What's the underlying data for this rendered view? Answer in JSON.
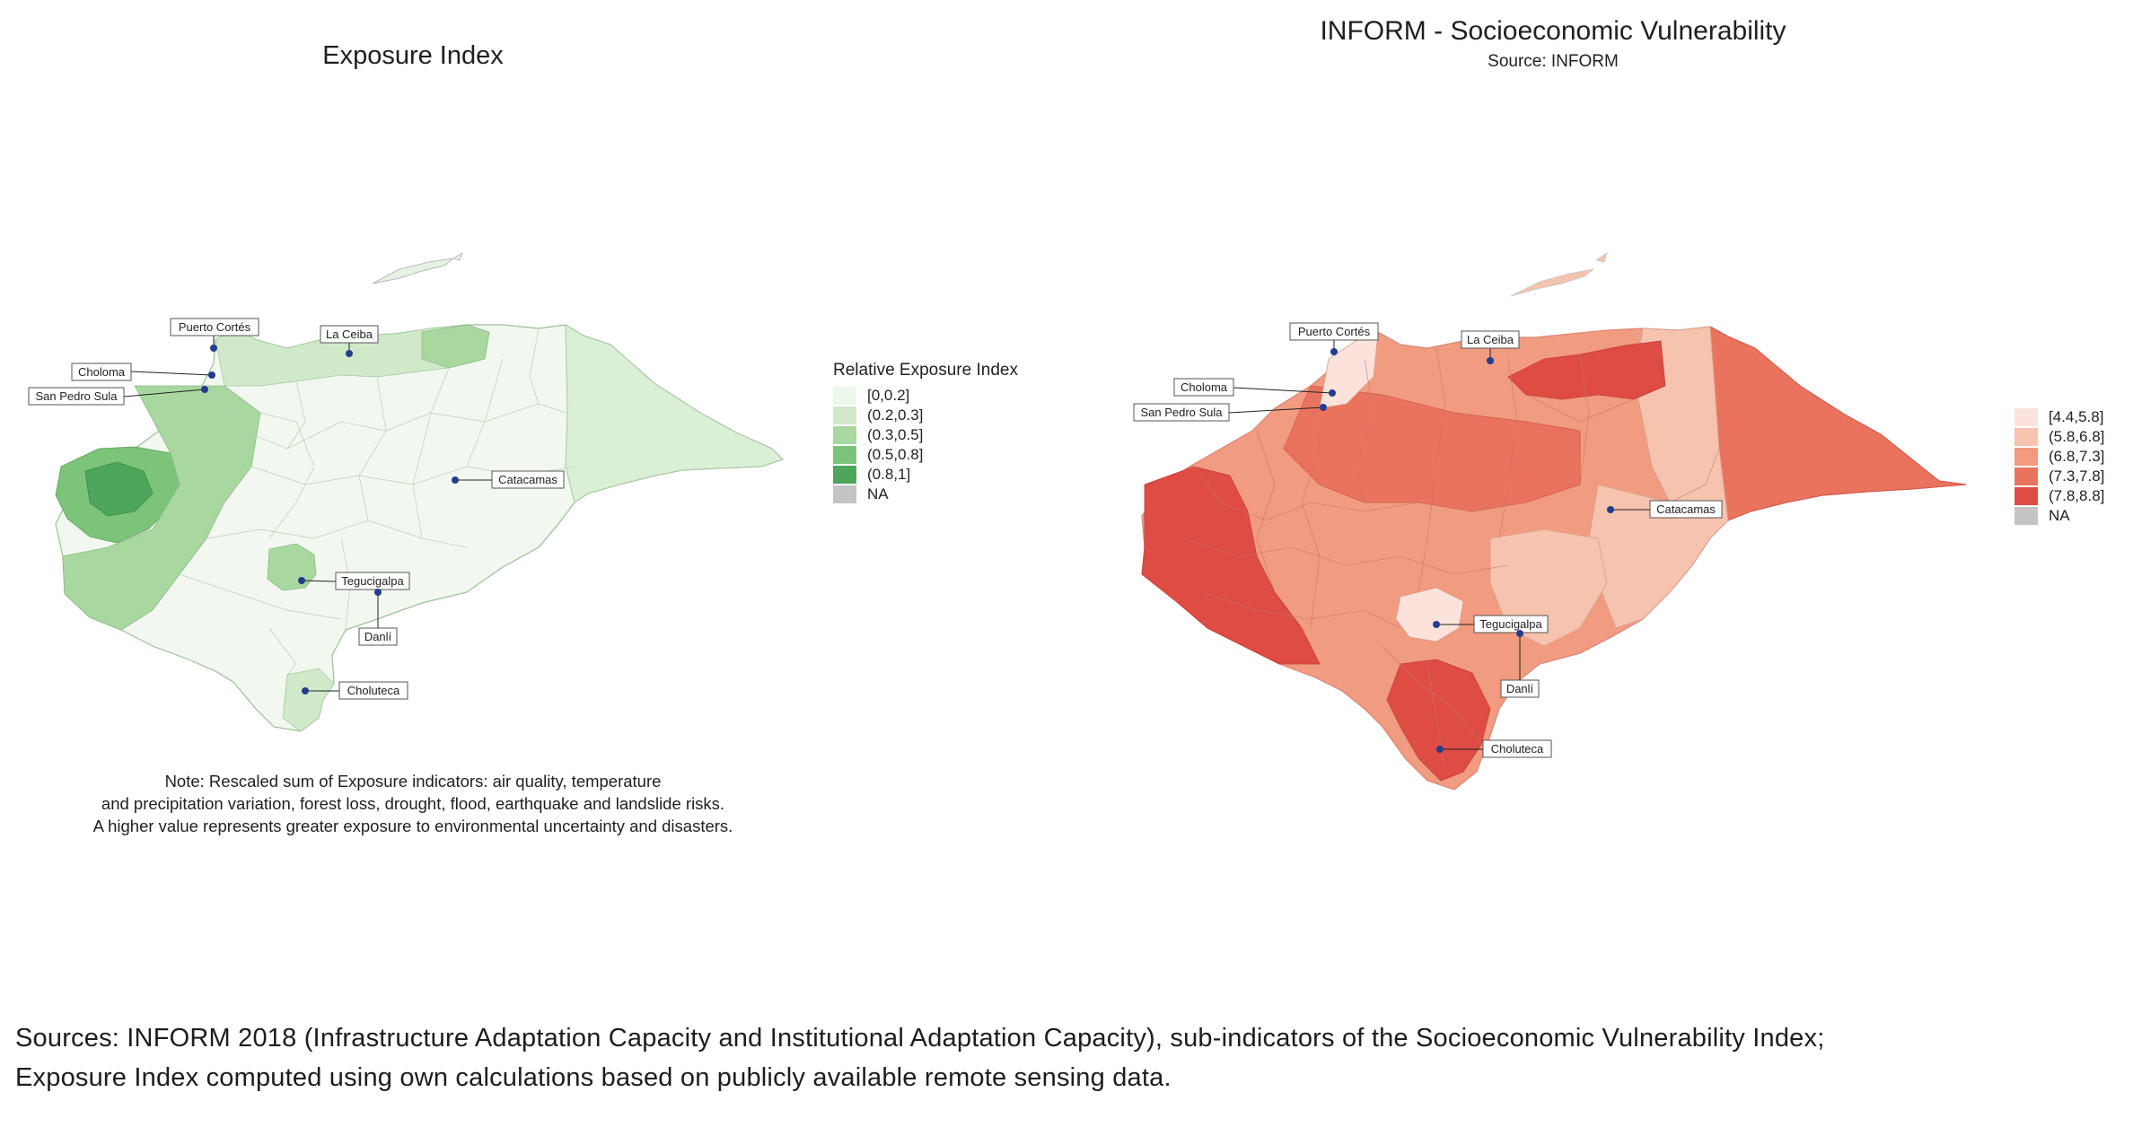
{
  "left_panel": {
    "title": "Exposure Index",
    "legend": {
      "title": "Relative Exposure Index",
      "items": [
        {
          "label": "[0,0.2]",
          "color": "#eef7ec"
        },
        {
          "label": "(0.2,0.3]",
          "color": "#cfe9c9"
        },
        {
          "label": "(0.3,0.5]",
          "color": "#a8d8a0"
        },
        {
          "label": "(0.5,0.8]",
          "color": "#7cc47a"
        },
        {
          "label": "(0.8,1]",
          "color": "#4da65a"
        },
        {
          "label": "NA",
          "color": "#c4c4c4"
        }
      ]
    },
    "cities": [
      "Puerto Cortés",
      "La Ceiba",
      "Choloma",
      "San Pedro Sula",
      "Catacamas",
      "Tegucigalpa",
      "Danlí",
      "Choluteca"
    ],
    "note": [
      "Note: Rescaled sum of Exposure indicators: air quality, temperature",
      "and precipitation variation, forest loss, drought, flood, earthquake and landslide risks.",
      "A higher value represents greater exposure to environmental uncertainty and disasters."
    ]
  },
  "right_panel": {
    "title": "INFORM - Socioeconomic Vulnerability",
    "subtitle": "Source: INFORM",
    "legend": {
      "items": [
        {
          "label": "[4.4,5.8]",
          "color": "#fbe3db"
        },
        {
          "label": "(5.8,6.8]",
          "color": "#f6c3ae"
        },
        {
          "label": "(6.8,7.3]",
          "color": "#f19b80"
        },
        {
          "label": "(7.3,7.8]",
          "color": "#ea735e"
        },
        {
          "label": "(7.8,8.8]",
          "color": "#de4c44"
        },
        {
          "label": "NA",
          "color": "#c4c4c4"
        }
      ]
    },
    "cities": [
      "Puerto Cortés",
      "La Ceiba",
      "Choloma",
      "San Pedro Sula",
      "Catacamas",
      "Tegucigalpa",
      "Danlí",
      "Choluteca"
    ]
  },
  "sources": [
    "Sources: INFORM 2018 (Infrastructure Adaptation Capacity and Institutional Adaptation Capacity), sub-indicators of the Socioeconomic Vulnerability Index;",
    "Exposure Index computed using own calculations based on publicly available remote sensing data."
  ],
  "point_color": "#243c8c"
}
